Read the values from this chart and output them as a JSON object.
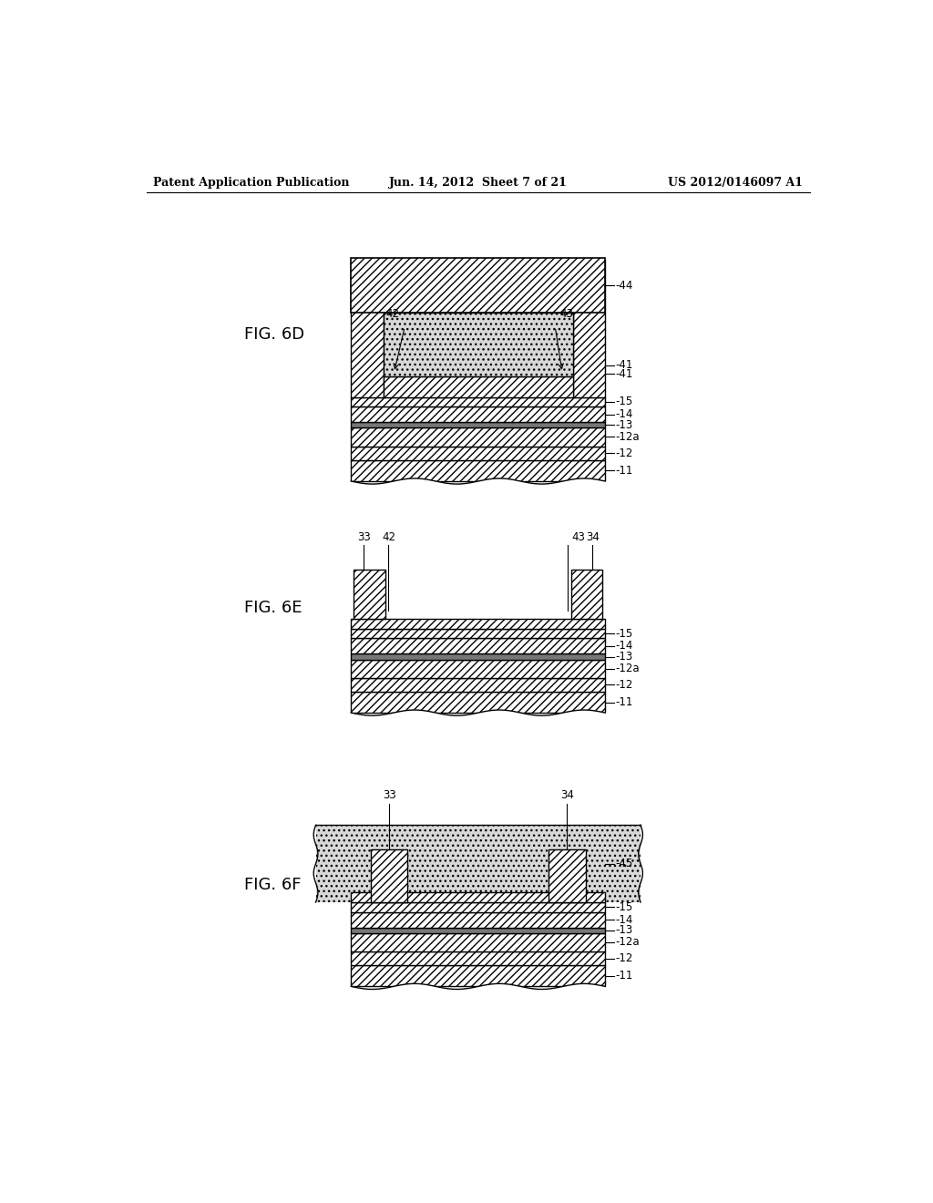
{
  "header_left": "Patent Application Publication",
  "header_center": "Jun. 14, 2012  Sheet 7 of 21",
  "header_right": "US 2012/0146097 A1",
  "fig_label_6D": "FIG. 6D",
  "fig_label_6E": "FIG. 6E",
  "fig_label_6F": "FIG. 6F",
  "colors": {
    "white": "#ffffff",
    "dotted": "#d0d0d0",
    "black": "#000000",
    "layer13": "#aaaaaa",
    "substrate11": "#ffffff"
  },
  "layer_heights": {
    "11": 30,
    "12": 22,
    "12a": 28,
    "13": 8,
    "14": 20,
    "15": 14
  }
}
